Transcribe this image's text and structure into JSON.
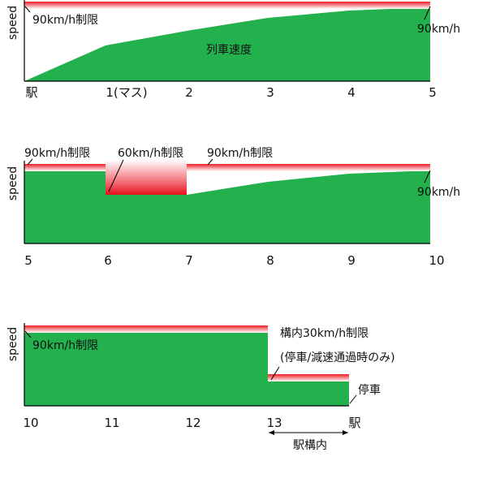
{
  "chart_data": [
    {
      "type": "area",
      "ylabel": "speed",
      "x": [
        0,
        1,
        2,
        3,
        4,
        5
      ],
      "tick_labels": [
        "駅",
        "1(マス)",
        "2",
        "3",
        "4",
        "5"
      ],
      "speed_limit": [
        {
          "from": 0,
          "to": 5,
          "label": "90km/h制限"
        }
      ],
      "train_speed": [
        [
          0,
          0
        ],
        [
          1,
          45
        ],
        [
          2,
          62
        ],
        [
          3,
          76
        ],
        [
          4,
          85
        ],
        [
          5,
          90
        ]
      ],
      "area_label": "列車速度",
      "end_label": "90km/h"
    },
    {
      "type": "area",
      "ylabel": "speed",
      "x": [
        5,
        6,
        7,
        8,
        9,
        10
      ],
      "tick_labels": [
        "5",
        "6",
        "7",
        "8",
        "9",
        "10"
      ],
      "speed_limit": [
        {
          "from": 5,
          "to": 6,
          "label": "90km/h制限"
        },
        {
          "from": 6,
          "to": 7,
          "label": "60km/h制限"
        },
        {
          "from": 7,
          "to": 10,
          "label": "90km/h制限"
        }
      ],
      "train_speed": [
        [
          5,
          90
        ],
        [
          6,
          90
        ],
        [
          6,
          60
        ],
        [
          7,
          60
        ],
        [
          8,
          75
        ],
        [
          9,
          85
        ],
        [
          10,
          90
        ]
      ],
      "end_label": "90km/h"
    },
    {
      "type": "area",
      "ylabel": "speed",
      "x": [
        10,
        11,
        12,
        13,
        14
      ],
      "tick_labels": [
        "10",
        "11",
        "12",
        "13",
        "駅"
      ],
      "speed_limit": [
        {
          "from": 10,
          "to": 13,
          "label": "90km/h制限"
        },
        {
          "from": 13,
          "to": 14,
          "label": "構内30km/h制限"
        }
      ],
      "limit_note": "(停車/減速通過時のみ)",
      "train_speed": [
        [
          10,
          90
        ],
        [
          13,
          90
        ],
        [
          13,
          30
        ],
        [
          14,
          30
        ],
        [
          14,
          0
        ]
      ],
      "stop_label": "停車",
      "station_span_label": "駅構内"
    }
  ],
  "colors": {
    "train_area": "#22b14c",
    "limit_line": "#ee1c24",
    "axis": "#000000"
  }
}
